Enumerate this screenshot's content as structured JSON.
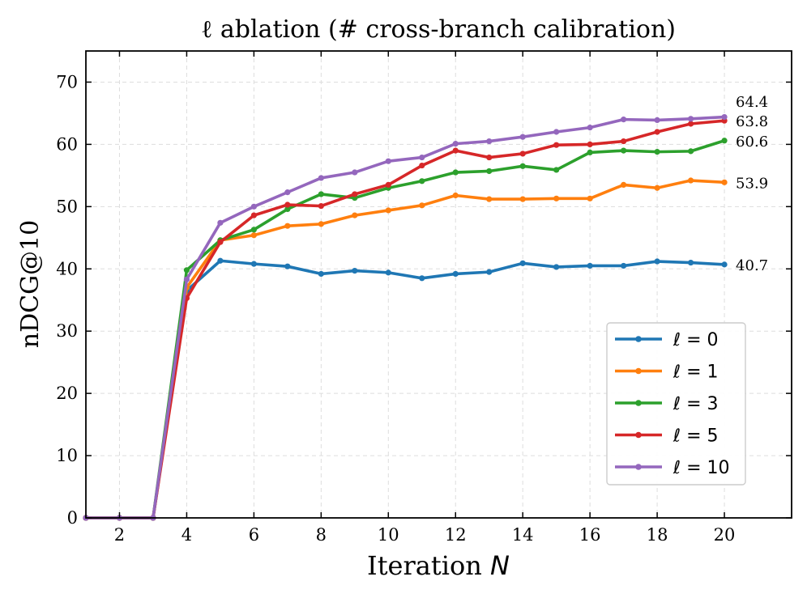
{
  "chart_data": {
    "type": "line",
    "title": "ℓ ablation (# cross-branch calibration)",
    "xlabel": "Iteration N",
    "ylabel": "nDCG@10",
    "xlim": [
      1,
      22
    ],
    "ylim": [
      0,
      75
    ],
    "xticks": [
      2,
      4,
      6,
      8,
      10,
      12,
      14,
      16,
      18,
      20
    ],
    "yticks": [
      0,
      10,
      20,
      30,
      40,
      50,
      60,
      70
    ],
    "grid": true,
    "legend_position": "lower-right",
    "x": [
      1,
      2,
      3,
      4,
      5,
      6,
      7,
      8,
      9,
      10,
      11,
      12,
      13,
      14,
      15,
      16,
      17,
      18,
      19,
      20
    ],
    "series": [
      {
        "name": "ℓ = 0",
        "color": "#1f77b4",
        "end_label": "40.7",
        "values": [
          0,
          0,
          0,
          36.5,
          41.3,
          40.8,
          40.4,
          39.2,
          39.7,
          39.4,
          38.5,
          39.2,
          39.5,
          40.9,
          40.3,
          40.5,
          40.5,
          41.2,
          41.0,
          40.7
        ]
      },
      {
        "name": "ℓ = 1",
        "color": "#ff7f0e",
        "end_label": "53.9",
        "values": [
          0,
          0,
          0,
          37.0,
          44.6,
          45.4,
          46.9,
          47.2,
          48.6,
          49.4,
          50.2,
          51.8,
          51.2,
          51.2,
          51.3,
          51.3,
          53.5,
          53.0,
          54.2,
          53.9
        ]
      },
      {
        "name": "ℓ = 3",
        "color": "#2ca02c",
        "end_label": "60.6",
        "values": [
          0,
          0,
          0,
          39.8,
          44.6,
          46.3,
          49.6,
          52.0,
          51.4,
          53.0,
          54.1,
          55.5,
          55.7,
          56.5,
          55.9,
          58.7,
          59.0,
          58.8,
          58.9,
          60.6
        ]
      },
      {
        "name": "ℓ = 5",
        "color": "#d62728",
        "end_label": "63.8",
        "values": [
          0,
          0,
          0,
          35.3,
          44.3,
          48.6,
          50.3,
          50.1,
          52.0,
          53.5,
          56.6,
          59.0,
          57.9,
          58.5,
          59.9,
          60.0,
          60.5,
          62.0,
          63.3,
          63.8
        ]
      },
      {
        "name": "ℓ = 10",
        "color": "#9467bd",
        "end_label": "64.4",
        "values": [
          0,
          0,
          0,
          38.3,
          47.4,
          50.0,
          52.3,
          54.6,
          55.5,
          57.3,
          57.9,
          60.1,
          60.5,
          61.2,
          62.0,
          62.7,
          64.0,
          63.9,
          64.1,
          64.4
        ]
      }
    ]
  }
}
